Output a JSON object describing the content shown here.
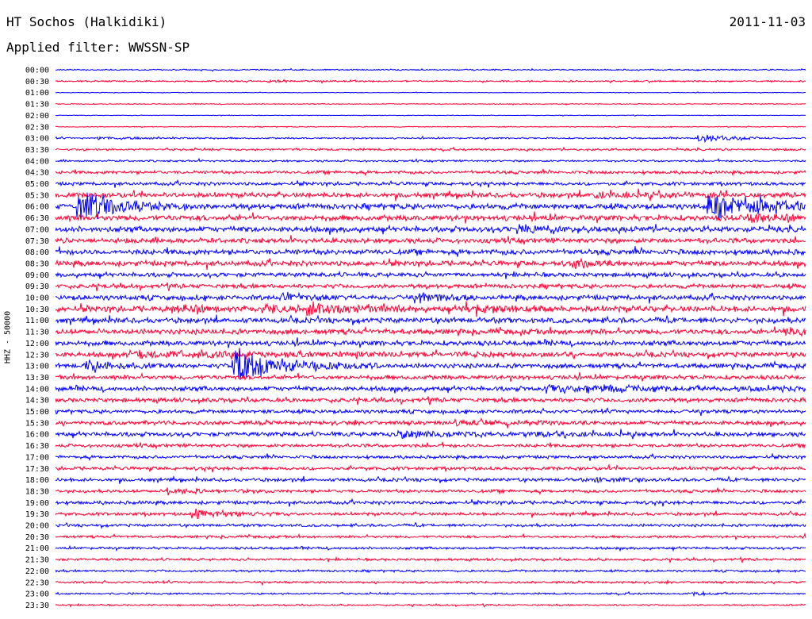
{
  "header": {
    "station": "HT Sochos (Halkidiki)",
    "date": "2011-11-03",
    "filter": "Applied filter: WWSSN-SP"
  },
  "chart_data": {
    "type": "line",
    "title": "HT Sochos (Halkidiki)",
    "ylabel": "HHZ - 50000",
    "row_colors": [
      "#0000ff",
      "#ff0033"
    ],
    "row_labels": [
      "00:00",
      "00:30",
      "01:00",
      "01:30",
      "02:00",
      "02:30",
      "03:00",
      "03:30",
      "04:00",
      "04:30",
      "05:00",
      "05:30",
      "06:00",
      "06:30",
      "07:00",
      "07:30",
      "08:00",
      "08:30",
      "09:00",
      "09:30",
      "10:00",
      "10:30",
      "11:00",
      "11:30",
      "12:00",
      "12:30",
      "13:00",
      "13:30",
      "14:00",
      "14:30",
      "15:00",
      "15:30",
      "16:00",
      "16:30",
      "17:00",
      "17:30",
      "18:00",
      "18:30",
      "19:00",
      "19:30",
      "20:00",
      "20:30",
      "21:00",
      "21:30",
      "22:00",
      "22:30",
      "23:00",
      "23:30"
    ],
    "noise_level": [
      0.2,
      0.25,
      0.1,
      0.15,
      0.1,
      0.15,
      0.25,
      0.35,
      0.3,
      0.5,
      0.55,
      0.8,
      0.9,
      0.9,
      0.9,
      0.8,
      0.85,
      0.85,
      0.7,
      0.7,
      0.8,
      0.95,
      0.85,
      0.85,
      0.8,
      0.8,
      0.75,
      0.7,
      0.75,
      0.7,
      0.6,
      0.65,
      0.7,
      0.55,
      0.5,
      0.55,
      0.55,
      0.5,
      0.55,
      0.5,
      0.45,
      0.4,
      0.4,
      0.4,
      0.35,
      0.35,
      0.3,
      0.25
    ],
    "events": [
      {
        "row": 1,
        "start_min": 8.5,
        "amp": 0.3,
        "dur_min": 1
      },
      {
        "row": 6,
        "start_min": 1.7,
        "amp": 0.4,
        "dur_min": 1.5
      },
      {
        "row": 6,
        "start_min": 25.7,
        "amp": 1.2,
        "dur_min": 1.2
      },
      {
        "row": 11,
        "start_min": 21.5,
        "amp": 0.5,
        "dur_min": 2.5
      },
      {
        "row": 12,
        "start_min": 0.9,
        "amp": 4.5,
        "dur_min": 1.5
      },
      {
        "row": 12,
        "start_min": 26.1,
        "amp": 3.5,
        "dur_min": 2.5
      },
      {
        "row": 13,
        "start_min": 27.7,
        "amp": 1.3,
        "dur_min": 1
      },
      {
        "row": 14,
        "start_min": 18.5,
        "amp": 1.3,
        "dur_min": 1.2
      },
      {
        "row": 17,
        "start_min": 20.8,
        "amp": 1.2,
        "dur_min": 0.6
      },
      {
        "row": 20,
        "start_min": 9.1,
        "amp": 1.2,
        "dur_min": 1
      },
      {
        "row": 20,
        "start_min": 14.6,
        "amp": 1.1,
        "dur_min": 1.2
      },
      {
        "row": 21,
        "start_min": 4.7,
        "amp": 0.8,
        "dur_min": 1.5
      },
      {
        "row": 21,
        "start_min": 8.3,
        "amp": 0.9,
        "dur_min": 1.3
      },
      {
        "row": 21,
        "start_min": 10,
        "amp": 2.2,
        "dur_min": 1.5
      },
      {
        "row": 21,
        "start_min": 16.3,
        "amp": 0.8,
        "dur_min": 1.5
      },
      {
        "row": 23,
        "start_min": 29.1,
        "amp": 1.2,
        "dur_min": 0.8
      },
      {
        "row": 25,
        "start_min": 3,
        "amp": 0.8,
        "dur_min": 6
      },
      {
        "row": 26,
        "start_min": 1.2,
        "amp": 1.3,
        "dur_min": 1.2
      },
      {
        "row": 26,
        "start_min": 7.1,
        "amp": 5,
        "dur_min": 2
      },
      {
        "row": 28,
        "start_min": 19.6,
        "amp": 0.9,
        "dur_min": 5
      },
      {
        "row": 31,
        "start_min": 15.9,
        "amp": 0.6,
        "dur_min": 2
      },
      {
        "row": 32,
        "start_min": 13.7,
        "amp": 0.8,
        "dur_min": 2
      },
      {
        "row": 32,
        "start_min": 18.8,
        "amp": 0.6,
        "dur_min": 1.5
      },
      {
        "row": 36,
        "start_min": 21.6,
        "amp": 0.5,
        "dur_min": 1
      },
      {
        "row": 37,
        "start_min": 4.5,
        "amp": 0.8,
        "dur_min": 1.5
      },
      {
        "row": 39,
        "start_min": 5.5,
        "amp": 1.3,
        "dur_min": 1.5
      },
      {
        "row": 46,
        "start_min": 25.5,
        "amp": 0.6,
        "dur_min": 0.8
      }
    ]
  }
}
